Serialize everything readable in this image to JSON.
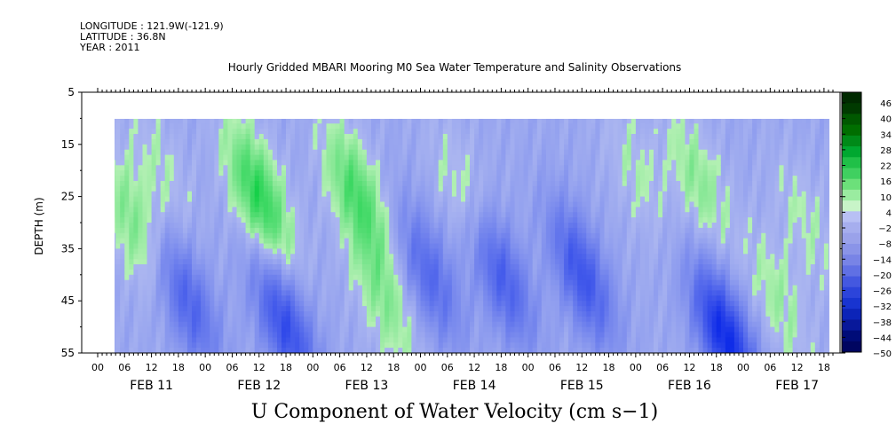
{
  "header": {
    "longitude": "LONGITUDE : 121.9W(-121.9)",
    "latitude": "LATITUDE : 36.8N",
    "year": "YEAR : 2011",
    "title": "Hourly Gridded MBARI Mooring M0 Sea Water Temperature and Salinity Observations"
  },
  "main_label": "U Component of Water Velocity (cm s−1)",
  "colors": {
    "negative_light": "#aab5f0",
    "negative_dark": "#0f2ce8",
    "positive_light": "#b4f0b4",
    "positive_dark": "#00cc3a",
    "colorbar": [
      "#002a00",
      "#003a00",
      "#005800",
      "#006e00",
      "#008a18",
      "#00a830",
      "#20c048",
      "#40d060",
      "#6ce07a",
      "#9aeca0",
      "#c8f4c8",
      "#b8c0f4",
      "#a6aeee",
      "#9aa2ea",
      "#8a94e8",
      "#7884e6",
      "#6070e4",
      "#4458e0",
      "#2c44da",
      "#1834d0",
      "#0c24b8",
      "#08189a",
      "#000c78",
      "#000560"
    ]
  },
  "chart_data": {
    "type": "heatmap",
    "title": "Hourly Gridded MBARI Mooring M0 Sea Water Temperature and Salinity Observations",
    "xlabel": "",
    "ylabel": "DEPTH (m)",
    "ylim": [
      55,
      5
    ],
    "y_ticks": [
      5,
      15,
      25,
      35,
      45,
      55
    ],
    "y_tick_labels": [
      "5",
      "15",
      "25",
      "35",
      "45",
      "55"
    ],
    "x_start_hours": 0,
    "x_end_hours": 164,
    "x_hour_ticks": [
      "00",
      "06",
      "12",
      "18",
      "00",
      "06",
      "12",
      "18",
      "00",
      "06",
      "12",
      "18",
      "00",
      "06",
      "12",
      "18",
      "00",
      "06",
      "12",
      "18",
      "00",
      "06",
      "12",
      "18",
      "00",
      "06",
      "12",
      "18"
    ],
    "x_day_labels": [
      "FEB 11",
      "FEB 12",
      "FEB 13",
      "FEB 14",
      "FEB 15",
      "FEB 16",
      "FEB 17"
    ],
    "data_depth_range": [
      10,
      55
    ],
    "data_time_range_hours": [
      2,
      164
    ],
    "colorbar": {
      "levels": [
        46,
        40,
        34,
        28,
        22,
        16,
        10,
        4,
        -2,
        -8,
        -14,
        -20,
        -26,
        -32,
        -38,
        -44,
        -50
      ],
      "labels": [
        "46",
        "40",
        "34",
        "28",
        "22",
        "16",
        "10",
        "4",
        "−2",
        "−8",
        "−14",
        "−20",
        "−26",
        "−32",
        "−38",
        "−44",
        "−50"
      ],
      "min": -50,
      "max": 46
    },
    "velocity_features": [
      {
        "time_hours": 8,
        "depth": 30,
        "value": 12
      },
      {
        "time_hours": 14,
        "depth": 20,
        "value": 6
      },
      {
        "time_hours": 20,
        "depth": 45,
        "value": -20
      },
      {
        "time_hours": 36,
        "depth": 25,
        "value": 22
      },
      {
        "time_hours": 42,
        "depth": 50,
        "value": -26
      },
      {
        "time_hours": 58,
        "depth": 25,
        "value": 18
      },
      {
        "time_hours": 64,
        "depth": 45,
        "value": 10
      },
      {
        "time_hours": 74,
        "depth": 40,
        "value": -18
      },
      {
        "time_hours": 82,
        "depth": 25,
        "value": 8
      },
      {
        "time_hours": 90,
        "depth": 40,
        "value": -22
      },
      {
        "time_hours": 108,
        "depth": 40,
        "value": -24
      },
      {
        "time_hours": 120,
        "depth": 20,
        "value": 6
      },
      {
        "time_hours": 134,
        "depth": 22,
        "value": 10
      },
      {
        "time_hours": 140,
        "depth": 52,
        "value": -36
      },
      {
        "time_hours": 152,
        "depth": 45,
        "value": 8
      },
      {
        "time_hours": 158,
        "depth": 30,
        "value": 6
      }
    ]
  }
}
